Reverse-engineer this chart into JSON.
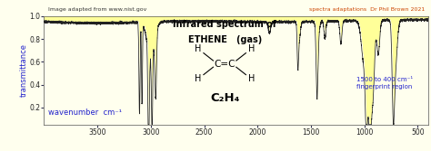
{
  "title_line1": "Infrared spectrum of",
  "title_line2": "ETHENE   (gas)",
  "xlabel_text": "wavenumber  cm⁻¹",
  "ylabel_text": "transmittance",
  "xmin": 4000,
  "xmax": 400,
  "ymin": 0.05,
  "ymax": 1.0,
  "bg_color": "#ffffee",
  "plot_bg": "#ffffee",
  "line_color": "#222222",
  "fill_top_color": "#ffff99",
  "xticks": [
    3500,
    3000,
    2500,
    2000,
    1500,
    1000,
    500
  ],
  "yticks": [
    0.2,
    0.4,
    0.6,
    0.8,
    1.0
  ],
  "nist_text": "Image adapted from www.nist.gov",
  "credit_text": "spectra adaptations  Dr Phil Brown 2021",
  "fingerprint_text": "1500 to 400 cm⁻¹\nfingerprint region",
  "formula_text": "C₂H₄",
  "blue_color": "#2222cc",
  "orange_color": "#cc4400",
  "grid_color": "#ccccaa"
}
